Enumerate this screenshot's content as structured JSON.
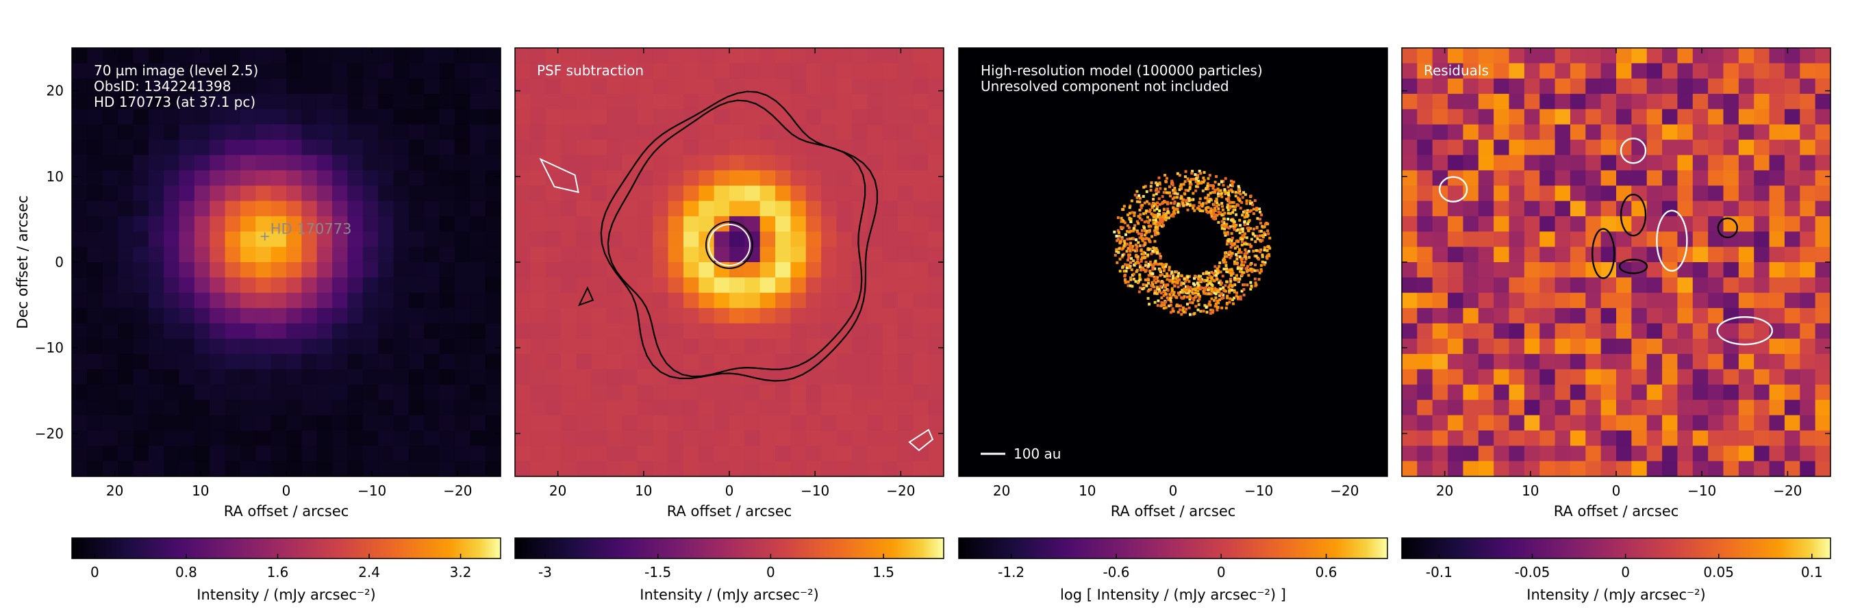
{
  "chart_data": [
    {
      "type": "heatmap",
      "title": "",
      "annotations": [
        "70 µm image (level 2.5)",
        "ObsID: 1342241398",
        "HD 170773 (at 37.1 pc)"
      ],
      "star_label": "HD 170773",
      "xlabel": "RA offset / arcsec",
      "ylabel": "Dec offset / arcsec",
      "xlim": [
        25,
        -25
      ],
      "ylim": [
        -25,
        25
      ],
      "xticks": [
        20,
        10,
        0,
        -10,
        -20
      ],
      "xtick_labels": [
        "20",
        "10",
        "0",
        "−10",
        "−20"
      ],
      "yticks": [
        20,
        10,
        0,
        -10,
        -20
      ],
      "ytick_labels": [
        "20",
        "10",
        "0",
        "−10",
        "−20"
      ],
      "colormap": "inferno",
      "colorbar": {
        "label": "Intensity / (mJy arcsec⁻²)",
        "range": [
          -0.2,
          3.55
        ],
        "ticks": [
          0,
          0.8,
          1.6,
          2.4,
          3.2
        ],
        "tick_labels": [
          "0",
          "0.8",
          "1.6",
          "2.4",
          "3.2"
        ]
      }
    },
    {
      "type": "heatmap",
      "title": "",
      "annotations": [
        "PSF subtraction"
      ],
      "xlabel": "RA offset / arcsec",
      "xlim": [
        25,
        -25
      ],
      "ylim": [
        -25,
        25
      ],
      "xticks": [
        20,
        10,
        0,
        -10,
        -20
      ],
      "xtick_labels": [
        "20",
        "10",
        "0",
        "−10",
        "−20"
      ],
      "colormap": "inferno",
      "colorbar": {
        "label": "Intensity / (mJy arcsec⁻²)",
        "range": [
          -3.4,
          2.3
        ],
        "ticks": [
          -3,
          -1.5,
          0,
          1.5
        ],
        "tick_labels": [
          "-3",
          "-1.5",
          "0",
          "1.5"
        ]
      }
    },
    {
      "type": "heatmap",
      "title": "",
      "annotations": [
        "High-resolution model (100000 particles)",
        "Unresolved component not included"
      ],
      "scale_bar_label": "100 au",
      "xlabel": "RA offset / arcsec",
      "xlim": [
        25,
        -25
      ],
      "ylim": [
        -25,
        25
      ],
      "xticks": [
        20,
        10,
        0,
        -10,
        -20
      ],
      "xtick_labels": [
        "20",
        "10",
        "0",
        "−10",
        "−20"
      ],
      "colormap": "inferno",
      "colorbar": {
        "label": "log [ Intensity / (mJy arcsec⁻²) ]",
        "range": [
          -1.5,
          0.95
        ],
        "ticks": [
          -1.2,
          -0.6,
          0,
          0.6
        ],
        "tick_labels": [
          "-1.2",
          "-0.6",
          "0",
          "0.6"
        ]
      }
    },
    {
      "type": "heatmap",
      "title": "",
      "annotations": [
        "Residuals"
      ],
      "xlabel": "RA offset / arcsec",
      "xlim": [
        25,
        -25
      ],
      "ylim": [
        -25,
        25
      ],
      "xticks": [
        20,
        10,
        0,
        -10,
        -20
      ],
      "xtick_labels": [
        "20",
        "10",
        "0",
        "−10",
        "−20"
      ],
      "colormap": "inferno",
      "colorbar": {
        "label": "Intensity / (mJy arcsec⁻²)",
        "range": [
          -0.12,
          0.11
        ],
        "ticks": [
          -0.1,
          -0.05,
          0,
          0.05,
          0.1
        ],
        "tick_labels": [
          "-0.1",
          "-0.05",
          "0",
          "0.05",
          "0.1"
        ]
      }
    }
  ]
}
